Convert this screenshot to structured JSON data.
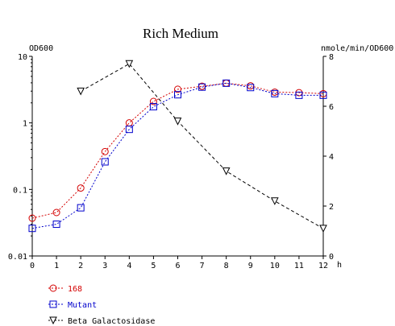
{
  "chart_data": {
    "type": "line",
    "title": "Rich Medium",
    "y_left_label": "OD600",
    "y_right_label": "nmole/min/OD600",
    "x_unit": "h",
    "x_ticks": [
      "0",
      "1",
      "2",
      "3",
      "4",
      "5",
      "6",
      "7",
      "8",
      "9",
      "10",
      "11",
      "12"
    ],
    "y_left_ticks": [
      "0.01",
      "0.1",
      "1",
      "10"
    ],
    "y_right_ticks": [
      "0",
      "2",
      "4",
      "6",
      "8"
    ],
    "xlim": [
      0,
      12
    ],
    "y_left_lim": [
      0.01,
      10
    ],
    "y_left_scale": "log",
    "y_right_lim": [
      0,
      8
    ],
    "grid": false,
    "legend_position": "bottom-left",
    "series": [
      {
        "name": "168",
        "axis": "left",
        "color": "#d40000",
        "marker": "circle",
        "line": "dotted",
        "x": [
          0,
          1,
          2,
          3,
          4,
          5,
          6,
          7,
          8,
          9,
          10,
          11,
          12
        ],
        "y": [
          0.037,
          0.045,
          0.105,
          0.37,
          1.0,
          2.1,
          3.2,
          3.55,
          3.95,
          3.6,
          2.9,
          2.85,
          2.75
        ]
      },
      {
        "name": "Mutant",
        "axis": "left",
        "color": "#0000cc",
        "marker": "square",
        "line": "dotted",
        "x": [
          0,
          1,
          2,
          3,
          4,
          5,
          6,
          7,
          8,
          9,
          10,
          11,
          12
        ],
        "y": [
          0.026,
          0.03,
          0.053,
          0.26,
          0.8,
          1.75,
          2.65,
          3.45,
          3.95,
          3.4,
          2.75,
          2.6,
          2.6
        ]
      },
      {
        "name": "Beta Galactosidase",
        "axis": "right",
        "color": "#000000",
        "marker": "triangle-down",
        "line": "dashed",
        "x": [
          2,
          4,
          6,
          8,
          10,
          12
        ],
        "y": [
          6.6,
          7.7,
          5.4,
          3.4,
          2.2,
          1.1
        ]
      }
    ]
  }
}
